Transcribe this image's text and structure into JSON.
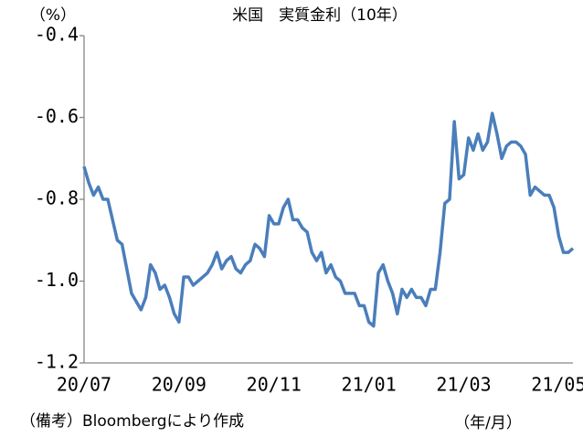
{
  "chart_data": {
    "type": "line",
    "title": "米国　実質金利（10年）",
    "y_label": "（%）",
    "x_label": "（年/月）",
    "note": "（備考）Bloombergにより作成",
    "color": "#4a7ebb",
    "categories": [
      "20/07",
      null,
      null,
      null,
      null,
      null,
      null,
      null,
      null,
      null,
      null,
      null,
      null,
      null,
      null,
      null,
      null,
      null,
      null,
      null,
      "20/09",
      null,
      null,
      null,
      null,
      null,
      null,
      null,
      null,
      null,
      null,
      null,
      null,
      null,
      null,
      null,
      null,
      null,
      null,
      null,
      "20/11",
      null,
      null,
      null,
      null,
      null,
      null,
      null,
      null,
      null,
      null,
      null,
      null,
      null,
      null,
      null,
      null,
      null,
      null,
      null,
      "21/01",
      null,
      null,
      null,
      null,
      null,
      null,
      null,
      null,
      null,
      null,
      null,
      null,
      null,
      null,
      null,
      null,
      null,
      null,
      null,
      "21/03",
      null,
      null,
      null,
      null,
      null,
      null,
      null,
      null,
      null,
      null,
      null,
      null,
      null,
      null,
      null,
      null,
      null,
      null,
      null,
      "21/05",
      null,
      null,
      null
    ],
    "values": [
      -0.72,
      -0.76,
      -0.79,
      -0.77,
      -0.8,
      -0.8,
      -0.85,
      -0.9,
      -0.91,
      -0.97,
      -1.03,
      -1.05,
      -1.07,
      -1.04,
      -0.96,
      -0.98,
      -1.02,
      -1.01,
      -1.04,
      -1.08,
      -1.1,
      -0.99,
      -0.99,
      -1.01,
      -1.0,
      -0.99,
      -0.98,
      -0.96,
      -0.93,
      -0.97,
      -0.95,
      -0.94,
      -0.97,
      -0.98,
      -0.96,
      -0.95,
      -0.91,
      -0.92,
      -0.94,
      -0.84,
      -0.86,
      -0.86,
      -0.82,
      -0.8,
      -0.85,
      -0.85,
      -0.87,
      -0.88,
      -0.93,
      -0.95,
      -0.93,
      -0.98,
      -0.96,
      -0.99,
      -1.0,
      -1.03,
      -1.03,
      -1.03,
      -1.06,
      -1.06,
      -1.1,
      -1.11,
      -0.98,
      -0.96,
      -1.0,
      -1.03,
      -1.08,
      -1.02,
      -1.04,
      -1.02,
      -1.04,
      -1.04,
      -1.06,
      -1.02,
      -1.02,
      -0.93,
      -0.81,
      -0.8,
      -0.61,
      -0.75,
      -0.74,
      -0.65,
      -0.68,
      -0.64,
      -0.68,
      -0.66,
      -0.59,
      -0.64,
      -0.7,
      -0.67,
      -0.66,
      -0.66,
      -0.67,
      -0.69,
      -0.79,
      -0.77,
      -0.78,
      -0.79,
      -0.79,
      -0.82,
      -0.89,
      -0.93,
      -0.93,
      -0.92
    ],
    "ylim": [
      -1.2,
      -0.4
    ],
    "yticks": [
      -0.4,
      -0.6,
      -0.8,
      {
        "value": -1,
        "label": "-1.0"
      },
      -1.2
    ],
    "grid": false
  }
}
